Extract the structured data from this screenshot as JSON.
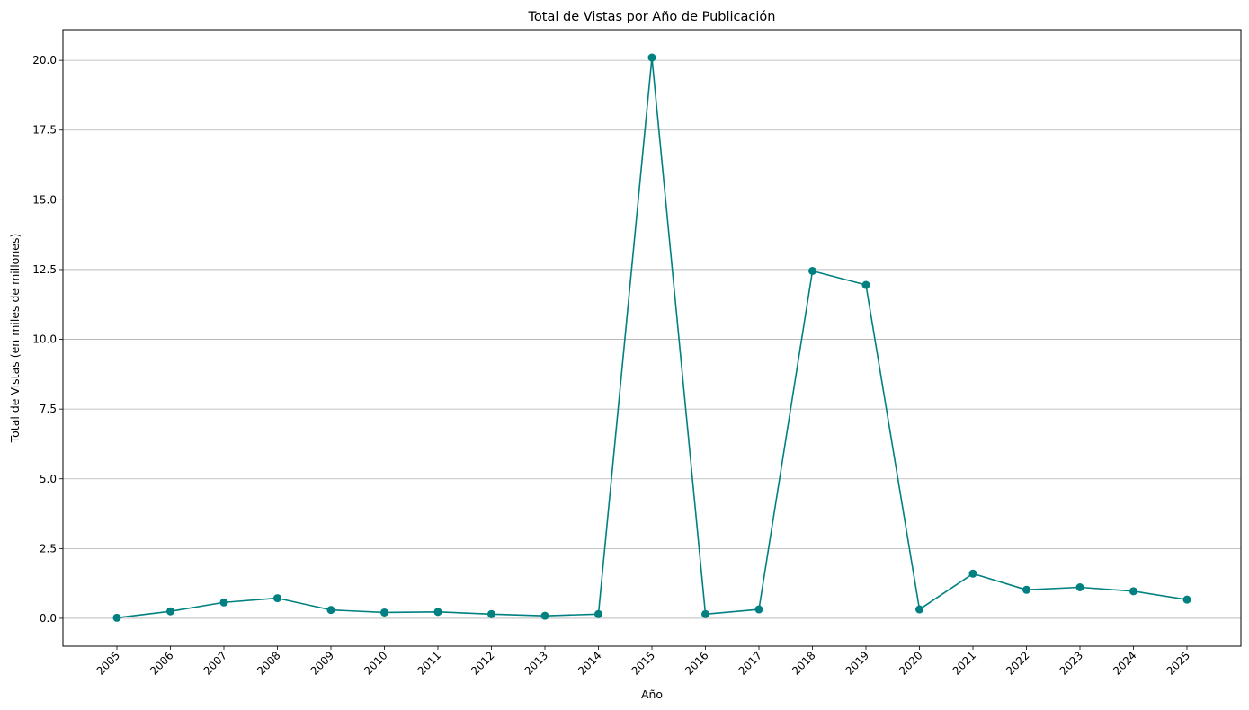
{
  "chart_data": {
    "type": "line",
    "title": "Total de Vistas por Año de Publicación",
    "xlabel": "Año",
    "ylabel": "Total de Vistas (en miles de millones)",
    "x": [
      "2005",
      "2006",
      "2007",
      "2008",
      "2009",
      "2010",
      "2011",
      "2012",
      "2013",
      "2014",
      "2015",
      "2016",
      "2017",
      "2018",
      "2019",
      "2020",
      "2021",
      "2022",
      "2023",
      "2024",
      "2025"
    ],
    "series": [
      {
        "values": [
          0.02,
          0.25,
          0.57,
          0.72,
          0.3,
          0.21,
          0.23,
          0.15,
          0.09,
          0.15,
          20.1,
          0.15,
          0.32,
          12.45,
          11.95,
          0.32,
          1.6,
          1.02,
          1.11,
          0.97,
          0.67
        ]
      }
    ],
    "yticks": [
      "0.0",
      "2.5",
      "5.0",
      "7.5",
      "10.0",
      "12.5",
      "15.0",
      "17.5",
      "20.0"
    ],
    "ytick_values": [
      0,
      2.5,
      5,
      7.5,
      10,
      12.5,
      15,
      17.5,
      20
    ],
    "ylim": [
      -1.0,
      21.1
    ],
    "grid": "horizontal",
    "colors": {
      "line": "#008080",
      "grid": "#b0b0b0"
    }
  }
}
